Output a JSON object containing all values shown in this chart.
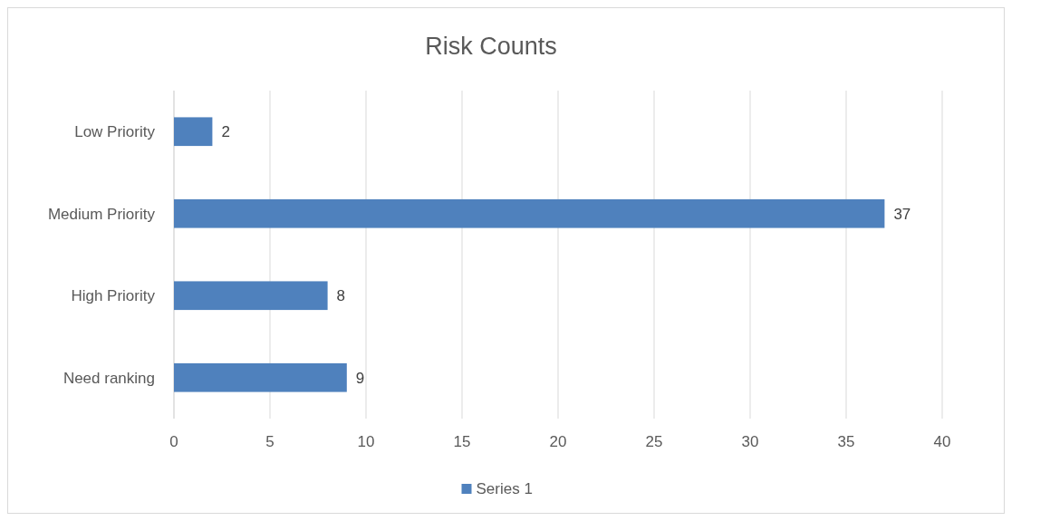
{
  "chart_data": {
    "type": "bar",
    "orientation": "horizontal",
    "title": "Risk Counts",
    "categories": [
      "Low Priority",
      "Medium Priority",
      "High Priority",
      "Need ranking"
    ],
    "series": [
      {
        "name": "Series 1",
        "color": "#4f81bd",
        "values": [
          2,
          37,
          8,
          9
        ]
      }
    ],
    "xlim": [
      0,
      40
    ],
    "xticks": [
      0,
      5,
      10,
      15,
      20,
      25,
      30,
      35,
      40
    ],
    "grid": "x",
    "data_labels": true,
    "legend": "bottom"
  }
}
